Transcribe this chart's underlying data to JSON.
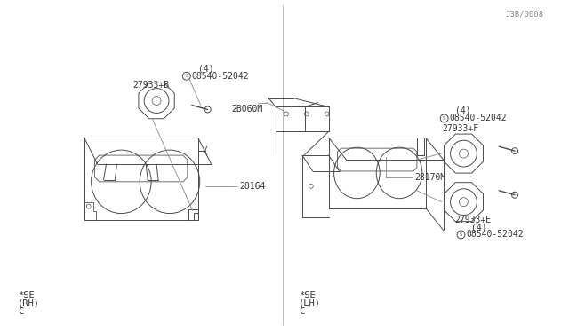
{
  "bg_color": "#ffffff",
  "line_color": "#4a4a4a",
  "text_color": "#333333",
  "part_number_bottom_right": "J3B/0008",
  "left_label_lines": [
    "C",
    "(RH)",
    "*SE"
  ],
  "right_label_lines": [
    "C",
    "(LH)",
    "*SE"
  ],
  "left_parts": {
    "housing": "28164",
    "speaker_b": "27933+B",
    "bolt_b": "08540-52042",
    "bolt_b_qty": "(4)"
  },
  "right_parts": {
    "housing_top": "28170M",
    "housing_bottom": "2B060M",
    "speaker_e": "27933+E",
    "bolt_e": "08540-52042",
    "bolt_e_qty": "(4)",
    "speaker_f": "27933+F",
    "bolt_f": "08540-52042",
    "bolt_f_qty": "(4)"
  }
}
